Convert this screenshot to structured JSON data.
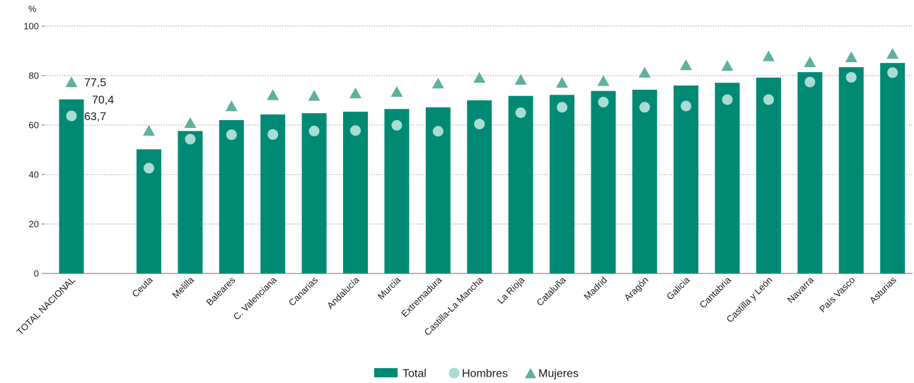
{
  "chart_data": {
    "type": "bar",
    "ylabel": "%",
    "ylim": [
      0,
      100
    ],
    "yticks": [
      0,
      20,
      40,
      60,
      80,
      100
    ],
    "grid": true,
    "legend_position": "bottom-center",
    "categories": [
      "TOTAL NACIONAL",
      "Ceuta",
      "Melilla",
      "Baleares",
      "C. Valenciana",
      "Canarias",
      "Andalucía",
      "Murcia",
      "Extremadura",
      "Castilla-La Mancha",
      "La Rioja",
      "Cataluña",
      "Madrid",
      "Aragón",
      "Galicia",
      "Cantabria",
      "Castilla y León",
      "Navarra",
      "País Vasco",
      "Asturias"
    ],
    "series": [
      {
        "name": "Total",
        "mark": "bar",
        "color": "#008a74",
        "values": [
          70.4,
          50.2,
          57.6,
          62.0,
          64.3,
          64.8,
          65.4,
          66.5,
          67.2,
          70.0,
          71.8,
          72.2,
          73.8,
          74.3,
          76.0,
          77.1,
          79.2,
          81.4,
          83.4,
          85.1
        ]
      },
      {
        "name": "Hombres",
        "mark": "circle",
        "color": "#a9dcd3",
        "values": [
          63.7,
          42.6,
          54.3,
          56.1,
          56.2,
          57.6,
          57.8,
          59.9,
          57.5,
          60.4,
          65.0,
          67.2,
          69.3,
          67.2,
          67.7,
          70.3,
          70.3,
          77.4,
          79.3,
          81.2
        ]
      },
      {
        "name": "Mujeres",
        "mark": "triangle",
        "color": "#5fb09f",
        "values": [
          77.5,
          57.9,
          61.0,
          67.8,
          72.3,
          72.0,
          73.0,
          73.6,
          77.0,
          79.3,
          78.5,
          77.3,
          78.0,
          81.4,
          84.4,
          84.1,
          88.0,
          85.6,
          87.6,
          89.0
        ]
      }
    ],
    "annotations": [
      {
        "category": "TOTAL NACIONAL",
        "series": "Mujeres",
        "text": "77,5"
      },
      {
        "category": "TOTAL NACIONAL",
        "series": "Total",
        "text": "70,4"
      },
      {
        "category": "TOTAL NACIONAL",
        "series": "Hombres",
        "text": "63,7"
      }
    ]
  }
}
